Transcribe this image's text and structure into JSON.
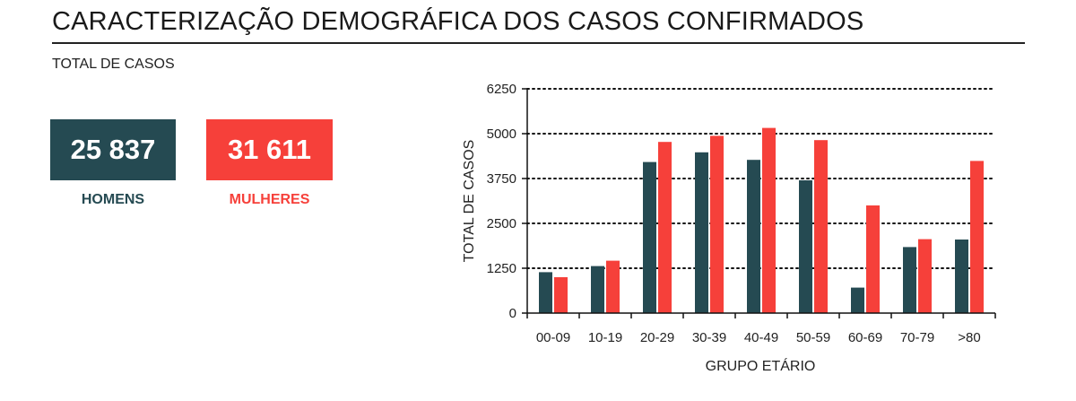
{
  "header": {
    "title": "CARACTERIZAÇÃO DEMOGRÁFICA DOS CASOS CONFIRMADOS",
    "subtitle": "TOTAL DE CASOS"
  },
  "kpis": {
    "men": {
      "value": "25 837",
      "label": "HOMENS",
      "color": "#254a52"
    },
    "women": {
      "value": "31 611",
      "label": "MULHERES",
      "color": "#f6403a"
    }
  },
  "chart_data": {
    "type": "bar",
    "xlabel": "GRUPO ETÁRIO",
    "ylabel": "TOTAL DE CASOS",
    "ylim": [
      0,
      6250
    ],
    "yticks": [
      0,
      1250,
      2500,
      3750,
      5000,
      6250
    ],
    "grid": "horizontal dotted",
    "categories": [
      "00-09",
      "10-19",
      "20-29",
      "30-39",
      "40-49",
      "50-59",
      "60-69",
      "70-79",
      ">80"
    ],
    "series": [
      {
        "color": "#254a52",
        "values": [
          1140,
          1310,
          4210,
          4480,
          4270,
          3700,
          710,
          1840,
          2050
        ]
      },
      {
        "color": "#f6403a",
        "values": [
          1000,
          1460,
          4770,
          4940,
          5160,
          4820,
          3000,
          2060,
          4240
        ]
      }
    ]
  }
}
